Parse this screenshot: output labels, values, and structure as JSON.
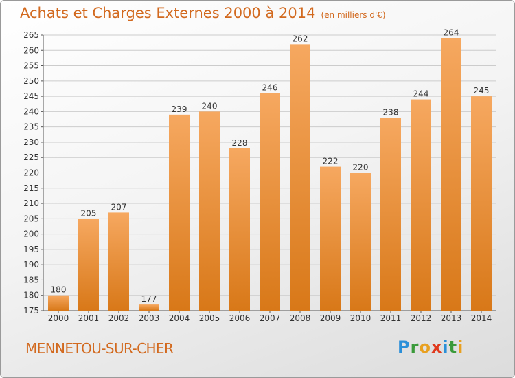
{
  "title": "Achats et Charges Externes 2000 à 2014",
  "unit": "(en milliers d'€)",
  "place": "MENNETOU-SUR-CHER",
  "logo": {
    "letters": [
      "P",
      "r",
      "o",
      "x",
      "i",
      "t",
      "i"
    ],
    "colors": [
      "#2a8fd8",
      "#3a9a3a",
      "#e8a020",
      "#e03a1e",
      "#2a8fd8",
      "#3a9a3a",
      "#e8a020"
    ]
  },
  "colors": {
    "bar_top": "#f6a860",
    "bar_bottom": "#d87818",
    "accent": "#d2691e",
    "grid": "#cccccc"
  },
  "chart_data": {
    "type": "bar",
    "categories": [
      "2000",
      "2001",
      "2002",
      "2003",
      "2004",
      "2005",
      "2006",
      "2007",
      "2008",
      "2009",
      "2010",
      "2011",
      "2012",
      "2013",
      "2014"
    ],
    "values": [
      180,
      205,
      207,
      177,
      239,
      240,
      228,
      246,
      262,
      222,
      220,
      238,
      244,
      264,
      245
    ],
    "ylim": [
      175,
      265
    ],
    "yticks": [
      175,
      180,
      185,
      190,
      195,
      200,
      205,
      210,
      215,
      220,
      225,
      230,
      235,
      240,
      245,
      250,
      255,
      260,
      265
    ],
    "grid": true
  }
}
